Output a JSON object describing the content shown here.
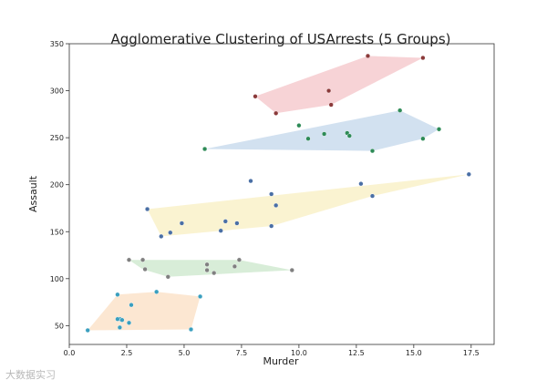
{
  "chart_data": {
    "type": "scatter",
    "title": "Agglomerative Clustering of USArrests (5 Groups)",
    "xlabel": "Murder",
    "ylabel": "Assault",
    "xlim": [
      0,
      18.5
    ],
    "ylim": [
      30,
      350
    ],
    "x_ticks": [
      "0.0",
      "2.5",
      "5.0",
      "7.5",
      "10.0",
      "12.5",
      "15.0",
      "17.5"
    ],
    "y_ticks": [
      "50",
      "100",
      "150",
      "200",
      "250",
      "300",
      "350"
    ],
    "grid": false,
    "series": [
      {
        "color": "#e8808a",
        "hull": [
          [
            8.1,
            294
          ],
          [
            13.0,
            337
          ],
          [
            15.4,
            335
          ],
          [
            11.4,
            285
          ],
          [
            9.0,
            276
          ]
        ],
        "points": [
          [
            13.0,
            337
          ],
          [
            15.4,
            335
          ],
          [
            8.1,
            294
          ],
          [
            11.3,
            300
          ],
          [
            11.4,
            285
          ],
          [
            9.0,
            276
          ]
        ]
      },
      {
        "color": "#7fa9d4",
        "hull": [
          [
            5.9,
            238
          ],
          [
            14.4,
            279
          ],
          [
            16.1,
            259
          ],
          [
            15.4,
            249
          ],
          [
            13.2,
            236
          ]
        ],
        "points": [
          [
            14.4,
            279
          ],
          [
            16.1,
            259
          ],
          [
            10.0,
            263
          ],
          [
            15.4,
            249
          ],
          [
            11.1,
            254
          ],
          [
            12.1,
            255
          ],
          [
            12.2,
            252
          ],
          [
            10.4,
            249
          ],
          [
            13.2,
            236
          ],
          [
            5.9,
            238
          ]
        ]
      },
      {
        "color": "#f2dc7a",
        "hull": [
          [
            3.4,
            174
          ],
          [
            17.4,
            211
          ],
          [
            13.2,
            188
          ],
          [
            8.8,
            156
          ],
          [
            4.0,
            145
          ]
        ],
        "points": [
          [
            17.4,
            211
          ],
          [
            7.9,
            204
          ],
          [
            12.7,
            201
          ],
          [
            8.8,
            190
          ],
          [
            13.2,
            188
          ],
          [
            9.0,
            178
          ],
          [
            3.4,
            174
          ],
          [
            6.8,
            161
          ],
          [
            4.9,
            159
          ],
          [
            7.3,
            159
          ],
          [
            6.6,
            151
          ],
          [
            4.4,
            149
          ],
          [
            8.8,
            156
          ],
          [
            4.0,
            145
          ]
        ]
      },
      {
        "color": "#8fcc8f",
        "hull": [
          [
            2.6,
            120
          ],
          [
            7.4,
            120
          ],
          [
            9.7,
            109
          ],
          [
            4.3,
            102
          ],
          [
            3.2,
            110
          ]
        ],
        "points": [
          [
            2.6,
            120
          ],
          [
            3.2,
            120
          ],
          [
            7.4,
            120
          ],
          [
            6.0,
            115
          ],
          [
            7.2,
            113
          ],
          [
            6.0,
            109
          ],
          [
            3.3,
            110
          ],
          [
            6.3,
            106
          ],
          [
            9.7,
            109
          ],
          [
            4.3,
            102
          ]
        ]
      },
      {
        "color": "#f5b97f",
        "hull": [
          [
            0.8,
            45
          ],
          [
            2.1,
            83
          ],
          [
            3.8,
            86
          ],
          [
            5.7,
            81
          ],
          [
            5.3,
            46
          ]
        ],
        "points": [
          [
            2.1,
            83
          ],
          [
            3.8,
            86
          ],
          [
            5.7,
            81
          ],
          [
            2.7,
            72
          ],
          [
            2.2,
            57
          ],
          [
            2.1,
            57
          ],
          [
            2.3,
            56
          ],
          [
            2.6,
            53
          ],
          [
            2.2,
            48
          ],
          [
            0.8,
            45
          ],
          [
            5.3,
            46
          ]
        ]
      }
    ]
  },
  "watermark": "大数据实习"
}
